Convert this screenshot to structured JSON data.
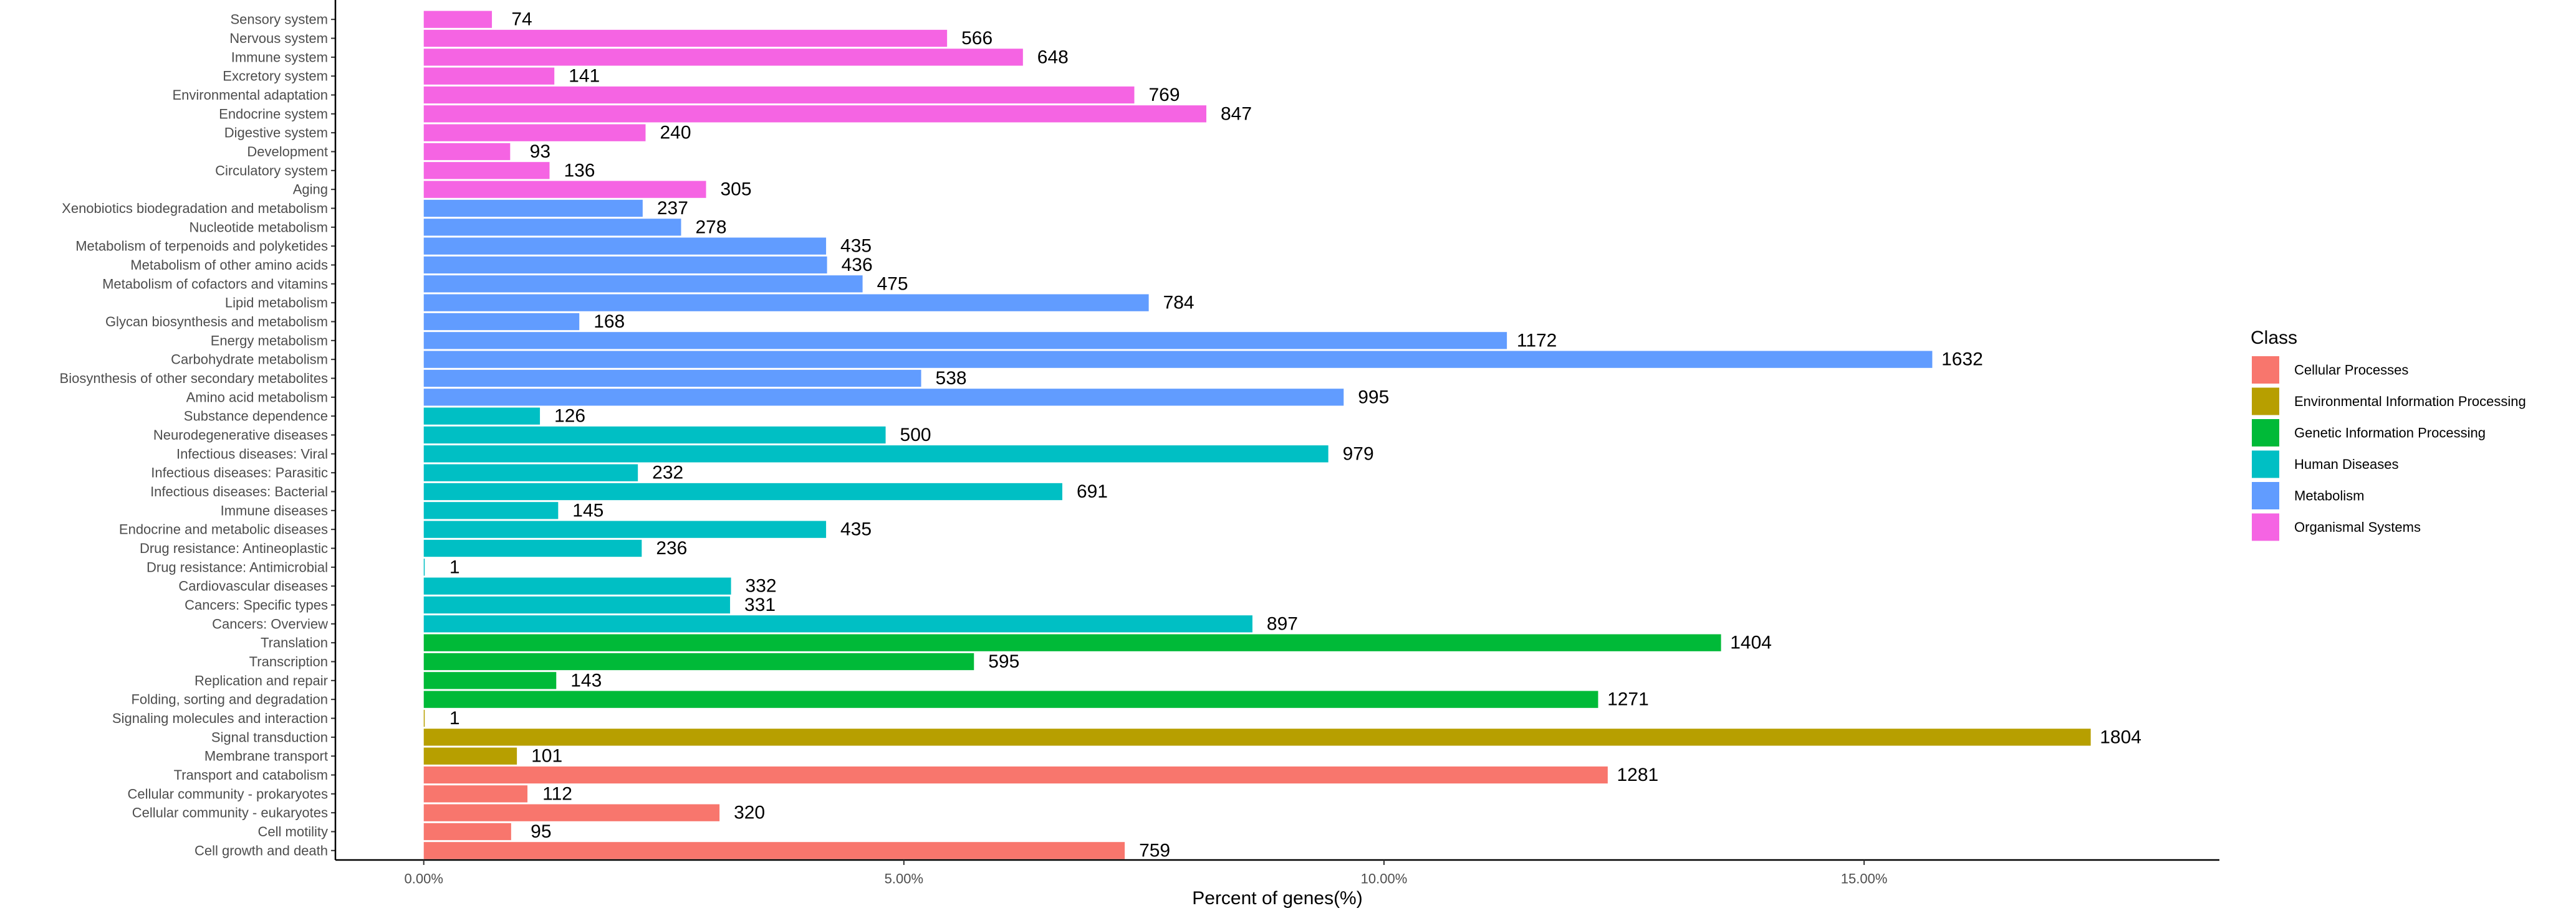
{
  "chart_data": {
    "type": "bar",
    "orientation": "horizontal",
    "xlabel": "Percent of genes(%)",
    "xlim": [
      -0.92,
      18.7
    ],
    "xticks": [
      0,
      5,
      10,
      15
    ],
    "xtick_labels": [
      "0.00%",
      "5.00%",
      "10.00%",
      "15.00%"
    ],
    "grid": false,
    "legend_title": "Class",
    "legend_position": "right",
    "classes": [
      {
        "name": "Cellular Processes",
        "color": "#F8766D"
      },
      {
        "name": "Environmental Information Processing",
        "color": "#B79F00"
      },
      {
        "name": "Genetic Information Processing",
        "color": "#00BA38"
      },
      {
        "name": "Human Diseases",
        "color": "#00BFC4"
      },
      {
        "name": "Metabolism",
        "color": "#619CFF"
      },
      {
        "name": "Organismal Systems",
        "color": "#F564E3"
      }
    ],
    "bars": [
      {
        "label": "Sensory system",
        "count": "74",
        "percent": 0.71,
        "class": "Organismal Systems"
      },
      {
        "label": "Nervous system",
        "count": "566",
        "percent": 5.45,
        "class": "Organismal Systems"
      },
      {
        "label": "Immune system",
        "count": "648",
        "percent": 6.24,
        "class": "Organismal Systems"
      },
      {
        "label": "Excretory system",
        "count": "141",
        "percent": 1.36,
        "class": "Organismal Systems"
      },
      {
        "label": "Environmental adaptation",
        "count": "769",
        "percent": 7.4,
        "class": "Organismal Systems"
      },
      {
        "label": "Endocrine system",
        "count": "847",
        "percent": 8.15,
        "class": "Organismal Systems"
      },
      {
        "label": "Digestive system",
        "count": "240",
        "percent": 2.31,
        "class": "Organismal Systems"
      },
      {
        "label": "Development",
        "count": "93",
        "percent": 0.9,
        "class": "Organismal Systems"
      },
      {
        "label": "Circulatory system",
        "count": "136",
        "percent": 1.31,
        "class": "Organismal Systems"
      },
      {
        "label": "Aging",
        "count": "305",
        "percent": 2.94,
        "class": "Organismal Systems"
      },
      {
        "label": "Xenobiotics biodegradation and metabolism",
        "count": "237",
        "percent": 2.28,
        "class": "Metabolism"
      },
      {
        "label": "Nucleotide metabolism",
        "count": "278",
        "percent": 2.68,
        "class": "Metabolism"
      },
      {
        "label": "Metabolism of terpenoids and polyketides",
        "count": "435",
        "percent": 4.19,
        "class": "Metabolism"
      },
      {
        "label": "Metabolism of other amino acids",
        "count": "436",
        "percent": 4.2,
        "class": "Metabolism"
      },
      {
        "label": "Metabolism of cofactors and vitamins",
        "count": "475",
        "percent": 4.57,
        "class": "Metabolism"
      },
      {
        "label": "Lipid metabolism",
        "count": "784",
        "percent": 7.55,
        "class": "Metabolism"
      },
      {
        "label": "Glycan biosynthesis and metabolism",
        "count": "168",
        "percent": 1.62,
        "class": "Metabolism"
      },
      {
        "label": "Energy metabolism",
        "count": "1172",
        "percent": 11.28,
        "class": "Metabolism"
      },
      {
        "label": "Carbohydrate metabolism",
        "count": "1632",
        "percent": 15.71,
        "class": "Metabolism"
      },
      {
        "label": "Biosynthesis of other secondary metabolites",
        "count": "538",
        "percent": 5.18,
        "class": "Metabolism"
      },
      {
        "label": "Amino acid metabolism",
        "count": "995",
        "percent": 9.58,
        "class": "Metabolism"
      },
      {
        "label": "Substance dependence",
        "count": "126",
        "percent": 1.21,
        "class": "Human Diseases"
      },
      {
        "label": "Neurodegenerative diseases",
        "count": "500",
        "percent": 4.81,
        "class": "Human Diseases"
      },
      {
        "label": "Infectious diseases: Viral",
        "count": "979",
        "percent": 9.42,
        "class": "Human Diseases"
      },
      {
        "label": "Infectious diseases: Parasitic",
        "count": "232",
        "percent": 2.23,
        "class": "Human Diseases"
      },
      {
        "label": "Infectious diseases: Bacterial",
        "count": "691",
        "percent": 6.65,
        "class": "Human Diseases"
      },
      {
        "label": "Immune diseases",
        "count": "145",
        "percent": 1.4,
        "class": "Human Diseases"
      },
      {
        "label": "Endocrine and metabolic diseases",
        "count": "435",
        "percent": 4.19,
        "class": "Human Diseases"
      },
      {
        "label": "Drug resistance: Antineoplastic",
        "count": "236",
        "percent": 2.27,
        "class": "Human Diseases"
      },
      {
        "label": "Drug resistance: Antimicrobial",
        "count": "1",
        "percent": 0.01,
        "class": "Human Diseases"
      },
      {
        "label": "Cardiovascular diseases",
        "count": "332",
        "percent": 3.2,
        "class": "Human Diseases"
      },
      {
        "label": "Cancers: Specific types",
        "count": "331",
        "percent": 3.19,
        "class": "Human Diseases"
      },
      {
        "label": "Cancers: Overview",
        "count": "897",
        "percent": 8.63,
        "class": "Human Diseases"
      },
      {
        "label": "Translation",
        "count": "1404",
        "percent": 13.51,
        "class": "Genetic Information Processing"
      },
      {
        "label": "Transcription",
        "count": "595",
        "percent": 5.73,
        "class": "Genetic Information Processing"
      },
      {
        "label": "Replication and repair",
        "count": "143",
        "percent": 1.38,
        "class": "Genetic Information Processing"
      },
      {
        "label": "Folding, sorting and degradation",
        "count": "1271",
        "percent": 12.23,
        "class": "Genetic Information Processing"
      },
      {
        "label": "Signaling molecules and interaction",
        "count": "1",
        "percent": 0.01,
        "class": "Environmental Information Processing"
      },
      {
        "label": "Signal transduction",
        "count": "1804",
        "percent": 17.36,
        "class": "Environmental Information Processing"
      },
      {
        "label": "Membrane transport",
        "count": "101",
        "percent": 0.97,
        "class": "Environmental Information Processing"
      },
      {
        "label": "Transport and catabolism",
        "count": "1281",
        "percent": 12.33,
        "class": "Cellular Processes"
      },
      {
        "label": "Cellular community - prokaryotes",
        "count": "112",
        "percent": 1.08,
        "class": "Cellular Processes"
      },
      {
        "label": "Cellular community - eukaryotes",
        "count": "320",
        "percent": 3.08,
        "class": "Cellular Processes"
      },
      {
        "label": "Cell motility",
        "count": "95",
        "percent": 0.91,
        "class": "Cellular Processes"
      },
      {
        "label": "Cell growth and death",
        "count": "759",
        "percent": 7.3,
        "class": "Cellular Processes"
      }
    ]
  }
}
